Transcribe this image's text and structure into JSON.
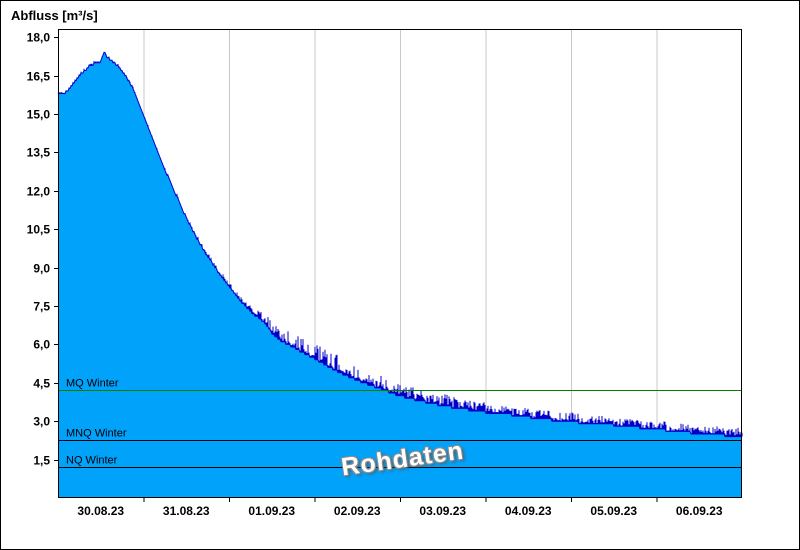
{
  "chart_data": {
    "type": "area",
    "title": "Abfluss [m³/s]",
    "watermark": "Rohdaten",
    "series_name": "Rohdaten",
    "xlabel": "",
    "ylabel": "Abfluss [m³/s]",
    "ylim": [
      0,
      18.32
    ],
    "grid": "vertical-day-lines",
    "legend_position": "none",
    "x_axis": {
      "days": 8,
      "start_label": "30.08.23",
      "labels": [
        {
          "t": 0.5,
          "label": "30.08.23"
        },
        {
          "t": 1.5,
          "label": "31.08.23"
        },
        {
          "t": 2.5,
          "label": "01.09.23"
        },
        {
          "t": 3.5,
          "label": "02.09.23"
        },
        {
          "t": 4.5,
          "label": "03.09.23"
        },
        {
          "t": 5.5,
          "label": "04.09.23"
        },
        {
          "t": 6.5,
          "label": "05.09.23"
        },
        {
          "t": 7.5,
          "label": "06.09.23"
        }
      ]
    },
    "y_axis": {
      "ticks": [
        {
          "v": 18.0,
          "label": "18,0"
        },
        {
          "v": 16.5,
          "label": "16,5"
        },
        {
          "v": 15.0,
          "label": "15,0"
        },
        {
          "v": 13.5,
          "label": "13,5"
        },
        {
          "v": 12.0,
          "label": "12,0"
        },
        {
          "v": 10.5,
          "label": "10,5"
        },
        {
          "v": 9.0,
          "label": "9,0"
        },
        {
          "v": 7.5,
          "label": "7,5"
        },
        {
          "v": 6.0,
          "label": "6,0"
        },
        {
          "v": 4.5,
          "label": "4,5"
        },
        {
          "v": 3.0,
          "label": "3,0"
        },
        {
          "v": 1.5,
          "label": "1,5"
        }
      ]
    },
    "colors": {
      "fill": "#00A2FA",
      "line": "#0000C8",
      "grid": "#C8C8C8",
      "axis": "#000000",
      "green_ref": "#007F00",
      "dark_ref": "#000000",
      "text": "#000000"
    },
    "reference_lines": [
      {
        "label": "MQ Winter",
        "value": 4.2,
        "color_key": "green_ref"
      },
      {
        "label": "MNQ Winter",
        "value": 2.25,
        "color_key": "dark_ref"
      },
      {
        "label": "NQ Winter",
        "value": 1.2,
        "color_key": "dark_ref"
      }
    ],
    "series": {
      "quantize_step": 0.1,
      "base_points": [
        [
          0.0,
          15.75
        ],
        [
          0.08,
          15.8
        ],
        [
          0.18,
          16.2
        ],
        [
          0.28,
          16.6
        ],
        [
          0.36,
          16.85
        ],
        [
          0.44,
          17.0
        ],
        [
          0.5,
          17.05
        ],
        [
          0.54,
          17.45
        ],
        [
          0.58,
          17.2
        ],
        [
          0.65,
          17.0
        ],
        [
          0.72,
          16.8
        ],
        [
          0.8,
          16.45
        ],
        [
          0.88,
          16.0
        ],
        [
          0.95,
          15.4
        ],
        [
          1.0,
          15.0
        ],
        [
          1.08,
          14.3
        ],
        [
          1.16,
          13.6
        ],
        [
          1.24,
          12.9
        ],
        [
          1.32,
          12.3
        ],
        [
          1.4,
          11.7
        ],
        [
          1.48,
          11.1
        ],
        [
          1.56,
          10.55
        ],
        [
          1.64,
          10.05
        ],
        [
          1.72,
          9.6
        ],
        [
          1.8,
          9.2
        ],
        [
          1.88,
          8.8
        ],
        [
          1.96,
          8.45
        ],
        [
          2.05,
          8.05
        ],
        [
          2.15,
          7.65
        ],
        [
          2.28,
          7.2
        ],
        [
          2.42,
          6.85
        ],
        [
          2.5,
          6.45
        ],
        [
          2.6,
          6.15
        ],
        [
          2.72,
          5.95
        ],
        [
          2.85,
          5.7
        ],
        [
          3.0,
          5.45
        ],
        [
          3.15,
          5.15
        ],
        [
          3.3,
          4.9
        ],
        [
          3.5,
          4.6
        ],
        [
          3.7,
          4.35
        ],
        [
          3.9,
          4.1
        ],
        [
          4.1,
          3.9
        ],
        [
          4.3,
          3.75
        ],
        [
          4.5,
          3.6
        ],
        [
          4.7,
          3.5
        ],
        [
          4.9,
          3.4
        ],
        [
          5.1,
          3.3
        ],
        [
          5.3,
          3.25
        ],
        [
          5.6,
          3.12
        ],
        [
          5.9,
          3.0
        ],
        [
          6.2,
          2.92
        ],
        [
          6.5,
          2.85
        ],
        [
          6.8,
          2.75
        ],
        [
          7.1,
          2.65
        ],
        [
          7.4,
          2.55
        ],
        [
          7.6,
          2.5
        ],
        [
          7.8,
          2.45
        ],
        [
          7.95,
          2.4
        ],
        [
          8.0,
          2.35
        ]
      ],
      "noise_amp_points": [
        [
          0.0,
          0.07
        ],
        [
          1.0,
          0.07
        ],
        [
          1.5,
          0.1
        ],
        [
          2.0,
          0.15
        ],
        [
          2.3,
          0.25
        ],
        [
          2.5,
          0.4
        ],
        [
          2.7,
          0.55
        ],
        [
          3.0,
          0.65
        ],
        [
          3.3,
          0.6
        ],
        [
          3.6,
          0.5
        ],
        [
          4.0,
          0.45
        ],
        [
          4.5,
          0.45
        ],
        [
          5.0,
          0.4
        ],
        [
          5.5,
          0.35
        ],
        [
          6.0,
          0.35
        ],
        [
          6.5,
          0.3
        ],
        [
          7.0,
          0.3
        ],
        [
          7.5,
          0.3
        ],
        [
          8.0,
          0.35
        ]
      ]
    }
  }
}
